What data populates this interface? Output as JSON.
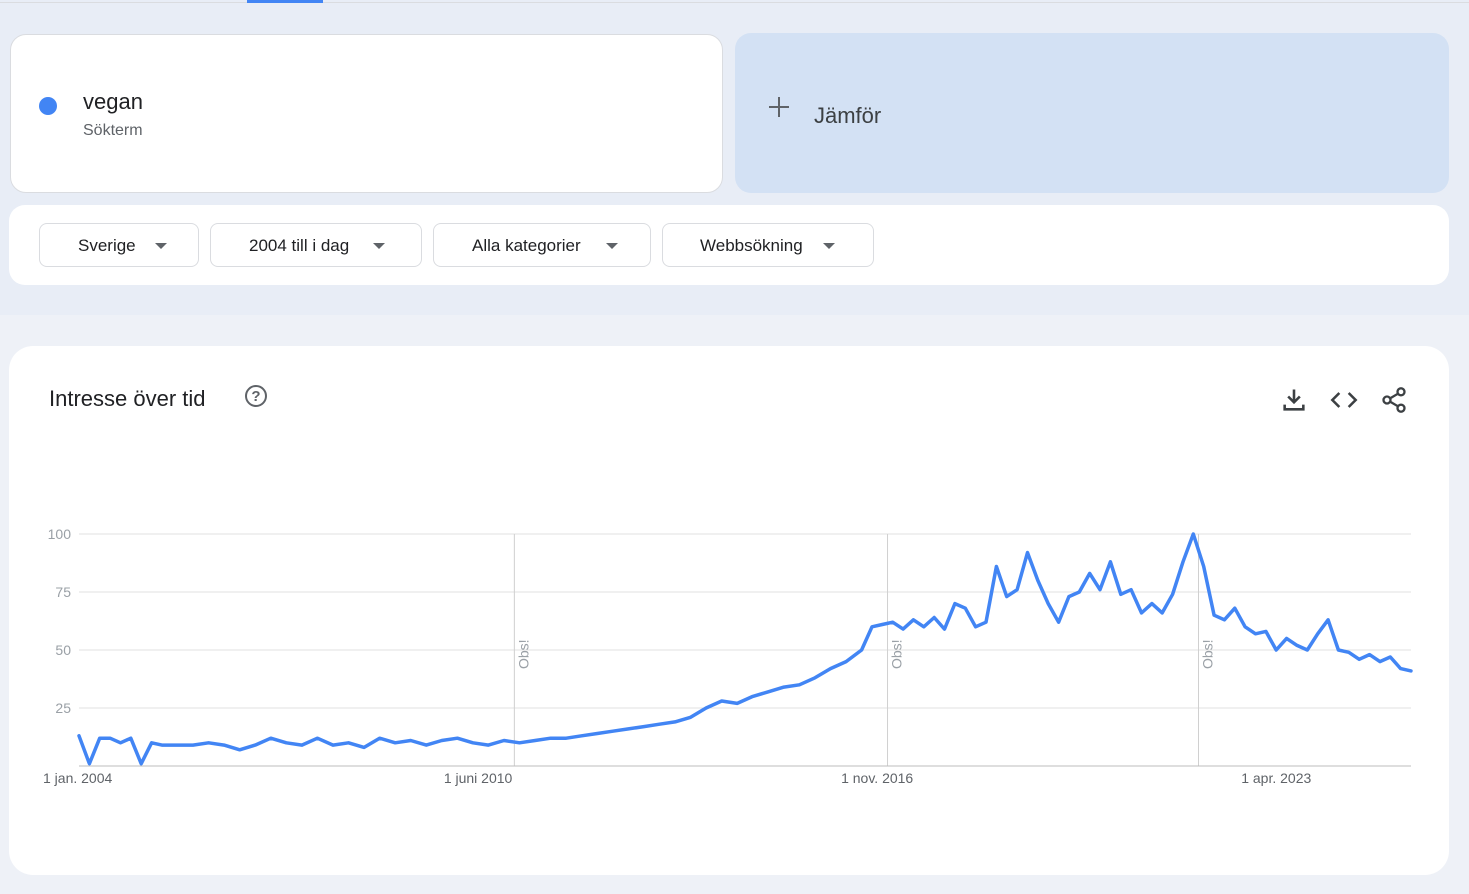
{
  "term": {
    "name": "vegan",
    "type": "Sökterm",
    "color": "#4285f4"
  },
  "compare": {
    "label": "Jämför",
    "icon": "plus-icon"
  },
  "filters": [
    {
      "label": "Sverige"
    },
    {
      "label": "2004 till i dag"
    },
    {
      "label": "Alla kategorier"
    },
    {
      "label": "Webbsökning"
    }
  ],
  "chart_card": {
    "title": "Intresse över tid",
    "help_icon": "help-icon",
    "tools": [
      "download-icon",
      "embed-code-icon",
      "share-icon"
    ]
  },
  "chart_data": {
    "type": "line",
    "title": "",
    "xlabel": "",
    "ylabel": "",
    "ylim": [
      0,
      100
    ],
    "y_ticks": [
      25,
      50,
      75,
      100
    ],
    "x_range": [
      "2004-01",
      "2025-06"
    ],
    "x_ticks": [
      {
        "date": "2004-01",
        "label": "1 jan. 2004"
      },
      {
        "date": "2010-06",
        "label": "1 juni 2010"
      },
      {
        "date": "2016-11",
        "label": "1 nov. 2016"
      },
      {
        "date": "2023-04",
        "label": "1 apr. 2023"
      }
    ],
    "annotations": [
      {
        "date": "2011-01",
        "label": "Obs!"
      },
      {
        "date": "2017-01",
        "label": "Obs!"
      },
      {
        "date": "2022-01",
        "label": "Obs!"
      }
    ],
    "grid": true,
    "legend": "none",
    "series": [
      {
        "color": "#4285f4",
        "points": [
          [
            "2004-01",
            13
          ],
          [
            "2004-03",
            1
          ],
          [
            "2004-05",
            12
          ],
          [
            "2004-07",
            12
          ],
          [
            "2004-09",
            10
          ],
          [
            "2004-11",
            12
          ],
          [
            "2005-01",
            1
          ],
          [
            "2005-03",
            10
          ],
          [
            "2005-05",
            9
          ],
          [
            "2005-08",
            9
          ],
          [
            "2005-11",
            9
          ],
          [
            "2006-02",
            10
          ],
          [
            "2006-05",
            9
          ],
          [
            "2006-08",
            7
          ],
          [
            "2006-11",
            9
          ],
          [
            "2007-02",
            12
          ],
          [
            "2007-05",
            10
          ],
          [
            "2007-08",
            9
          ],
          [
            "2007-11",
            12
          ],
          [
            "2008-02",
            9
          ],
          [
            "2008-05",
            10
          ],
          [
            "2008-08",
            8
          ],
          [
            "2008-11",
            12
          ],
          [
            "2009-02",
            10
          ],
          [
            "2009-05",
            11
          ],
          [
            "2009-08",
            9
          ],
          [
            "2009-11",
            11
          ],
          [
            "2010-02",
            12
          ],
          [
            "2010-05",
            10
          ],
          [
            "2010-08",
            9
          ],
          [
            "2010-11",
            11
          ],
          [
            "2011-02",
            10
          ],
          [
            "2011-05",
            11
          ],
          [
            "2011-08",
            12
          ],
          [
            "2011-11",
            12
          ],
          [
            "2012-02",
            13
          ],
          [
            "2012-05",
            14
          ],
          [
            "2012-08",
            15
          ],
          [
            "2012-11",
            16
          ],
          [
            "2013-02",
            17
          ],
          [
            "2013-05",
            18
          ],
          [
            "2013-08",
            19
          ],
          [
            "2013-11",
            21
          ],
          [
            "2014-02",
            25
          ],
          [
            "2014-05",
            28
          ],
          [
            "2014-08",
            27
          ],
          [
            "2014-11",
            30
          ],
          [
            "2015-02",
            32
          ],
          [
            "2015-05",
            34
          ],
          [
            "2015-08",
            35
          ],
          [
            "2015-11",
            38
          ],
          [
            "2016-02",
            42
          ],
          [
            "2016-05",
            45
          ],
          [
            "2016-08",
            50
          ],
          [
            "2016-10",
            60
          ],
          [
            "2016-12",
            61
          ],
          [
            "2017-02",
            62
          ],
          [
            "2017-04",
            59
          ],
          [
            "2017-06",
            63
          ],
          [
            "2017-08",
            60
          ],
          [
            "2017-10",
            64
          ],
          [
            "2017-12",
            59
          ],
          [
            "2018-02",
            70
          ],
          [
            "2018-04",
            68
          ],
          [
            "2018-06",
            60
          ],
          [
            "2018-08",
            62
          ],
          [
            "2018-10",
            86
          ],
          [
            "2018-12",
            73
          ],
          [
            "2019-02",
            76
          ],
          [
            "2019-04",
            92
          ],
          [
            "2019-06",
            80
          ],
          [
            "2019-08",
            70
          ],
          [
            "2019-10",
            62
          ],
          [
            "2019-12",
            73
          ],
          [
            "2020-02",
            75
          ],
          [
            "2020-04",
            83
          ],
          [
            "2020-06",
            76
          ],
          [
            "2020-08",
            88
          ],
          [
            "2020-10",
            74
          ],
          [
            "2020-12",
            76
          ],
          [
            "2021-02",
            66
          ],
          [
            "2021-04",
            70
          ],
          [
            "2021-06",
            66
          ],
          [
            "2021-08",
            74
          ],
          [
            "2021-10",
            88
          ],
          [
            "2021-12",
            100
          ],
          [
            "2022-02",
            86
          ],
          [
            "2022-04",
            65
          ],
          [
            "2022-06",
            63
          ],
          [
            "2022-08",
            68
          ],
          [
            "2022-10",
            60
          ],
          [
            "2022-12",
            57
          ],
          [
            "2023-02",
            58
          ],
          [
            "2023-04",
            50
          ],
          [
            "2023-06",
            55
          ],
          [
            "2023-08",
            52
          ],
          [
            "2023-10",
            50
          ],
          [
            "2023-12",
            57
          ],
          [
            "2024-02",
            63
          ],
          [
            "2024-04",
            50
          ],
          [
            "2024-06",
            49
          ],
          [
            "2024-08",
            46
          ],
          [
            "2024-10",
            48
          ],
          [
            "2024-12",
            45
          ],
          [
            "2025-02",
            47
          ],
          [
            "2025-04",
            42
          ],
          [
            "2025-06",
            41
          ]
        ]
      }
    ]
  }
}
